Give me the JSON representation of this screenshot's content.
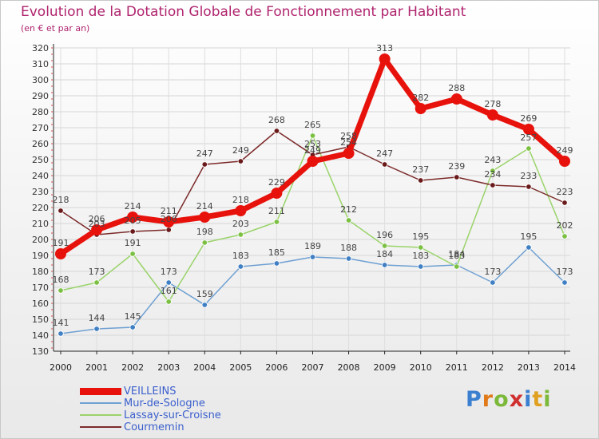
{
  "header": {
    "title": "Evolution de la Dotation Globale de Fonctionnement par Habitant",
    "subtitle": "(en € et par an)"
  },
  "logo": {
    "text": "Proxiti"
  },
  "chart_data": {
    "type": "line",
    "title": "Evolution de la Dotation Globale de Fonctionnement par Habitant",
    "subtitle": "(en € et par an)",
    "xlabel": "",
    "ylabel": "",
    "x": [
      "2000",
      "2001",
      "2002",
      "2003",
      "2004",
      "2005",
      "2006",
      "2007",
      "2008",
      "2009",
      "2010",
      "2011",
      "2012",
      "2013",
      "2014"
    ],
    "yticks": [
      130,
      140,
      150,
      160,
      170,
      180,
      190,
      200,
      210,
      220,
      230,
      240,
      250,
      260,
      270,
      280,
      290,
      300,
      310,
      320
    ],
    "ylim": [
      130,
      320
    ],
    "grid": true,
    "legend_position": "bottom-left",
    "series": [
      {
        "name": "VEILLEINS",
        "color": "#e8120c",
        "marker_color": "#e8120c",
        "emphasis": true,
        "values": [
          191,
          206,
          214,
          211,
          214,
          218,
          229,
          249,
          254,
          313,
          282,
          288,
          278,
          269,
          249
        ],
        "labels": [
          "191",
          "206",
          "214",
          "211",
          "214",
          "218",
          "229",
          "249",
          "254",
          "313",
          "282",
          "288",
          "278",
          "269",
          "249"
        ]
      },
      {
        "name": "Mur-de-Sologne",
        "color": "#6fa0d2",
        "marker_color": "#3f7fc4",
        "values": [
          141,
          144,
          145,
          173,
          159,
          183,
          185,
          189,
          188,
          184,
          183,
          184,
          173,
          195,
          173
        ],
        "labels": [
          "141",
          "144",
          "145",
          "173",
          "159",
          "183",
          "185",
          "189",
          "188",
          "184",
          "183",
          "184",
          "173",
          "195",
          "173"
        ]
      },
      {
        "name": "Lassay-sur-Croisne",
        "color": "#9ad36a",
        "marker_color": "#7cc043",
        "values": [
          168,
          173,
          191,
          161,
          198,
          203,
          211,
          265,
          212,
          196,
          195,
          183,
          243,
          257,
          202
        ],
        "labels": [
          "168",
          "173",
          "191",
          "161",
          "198",
          "203",
          "211",
          "265",
          "212",
          "196",
          "195",
          "183",
          "243",
          "257",
          "202"
        ]
      },
      {
        "name": "Courmemin",
        "color": "#7c2a2a",
        "marker_color": "#6a1a1a",
        "values": [
          218,
          203,
          205,
          206,
          247,
          249,
          268,
          253,
          258,
          247,
          237,
          239,
          234,
          233,
          223
        ],
        "labels": [
          "218",
          "203",
          "205",
          "206",
          "247",
          "249",
          "268",
          "253",
          "258",
          "247",
          "237",
          "239",
          "234",
          "233",
          "223"
        ]
      }
    ]
  }
}
